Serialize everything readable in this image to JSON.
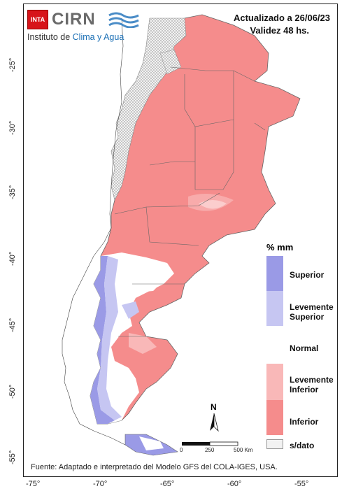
{
  "header": {
    "updated": "Actualizado a 26/06/23",
    "validity": "Validez 48 hs."
  },
  "logo": {
    "inta": "INTA",
    "cirn": "CIRN",
    "subtitle_main": "Instituto de",
    "subtitle_accent": "Clima y Agua"
  },
  "legend": {
    "title": "% mm",
    "items": [
      {
        "label": "Superior",
        "color": "#9a9ae6"
      },
      {
        "label": "Levemente Superior",
        "color": "#c6c6f2"
      },
      {
        "label": "Normal",
        "color": "#ffffff"
      },
      {
        "label": "Levemente Inferior",
        "color": "#f9b8b8"
      },
      {
        "label": "Inferior",
        "color": "#f58c8c"
      },
      {
        "label": "s/dato",
        "color": "#f2f2f2"
      }
    ]
  },
  "scale": {
    "labels": [
      "0",
      "250",
      "500 Km"
    ]
  },
  "north": "N",
  "axes": {
    "x_ticks": [
      "-75°",
      "-70°",
      "-65°",
      "-60°",
      "-55°"
    ],
    "y_ticks": [
      "-25°",
      "-30°",
      "-35°",
      "-40°",
      "-45°",
      "-50°",
      "-55°"
    ]
  },
  "source": "Fuente: Adaptado e interpretado del Modelo GFS del COLA-IGES, USA."
}
